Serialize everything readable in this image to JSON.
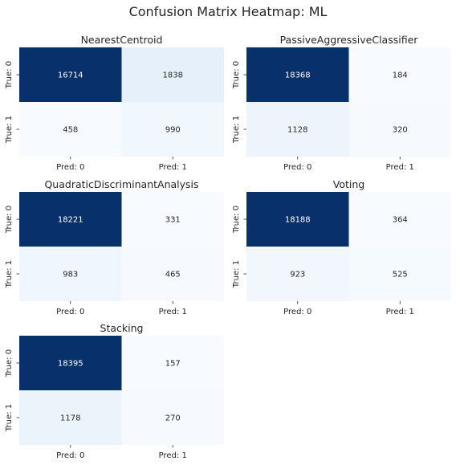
{
  "title": "Confusion Matrix Heatmap: ML",
  "chart_data": [
    {
      "type": "heatmap",
      "title": "NearestCentroid",
      "x_tick_labels": [
        "Pred: 0",
        "Pred: 1"
      ],
      "y_tick_labels": [
        "True: 0",
        "True: 1"
      ],
      "matrix": [
        [
          16714,
          1838
        ],
        [
          458,
          990
        ]
      ],
      "colormap": "Blues",
      "colorbar": false
    },
    {
      "type": "heatmap",
      "title": "PassiveAggressiveClassifier",
      "x_tick_labels": [
        "Pred: 0",
        "Pred: 1"
      ],
      "y_tick_labels": [
        "True: 0",
        "True: 1"
      ],
      "matrix": [
        [
          18368,
          184
        ],
        [
          1128,
          320
        ]
      ],
      "colormap": "Blues",
      "colorbar": false
    },
    {
      "type": "heatmap",
      "title": "QuadraticDiscriminantAnalysis",
      "x_tick_labels": [
        "Pred: 0",
        "Pred: 1"
      ],
      "y_tick_labels": [
        "True: 0",
        "True: 1"
      ],
      "matrix": [
        [
          18221,
          331
        ],
        [
          983,
          465
        ]
      ],
      "colormap": "Blues",
      "colorbar": false
    },
    {
      "type": "heatmap",
      "title": "Voting",
      "x_tick_labels": [
        "Pred: 0",
        "Pred: 1"
      ],
      "y_tick_labels": [
        "True: 0",
        "True: 1"
      ],
      "matrix": [
        [
          18188,
          364
        ],
        [
          923,
          525
        ]
      ],
      "colormap": "Blues",
      "colorbar": false
    },
    {
      "type": "heatmap",
      "title": "Stacking",
      "x_tick_labels": [
        "Pred: 0",
        "Pred: 1"
      ],
      "y_tick_labels": [
        "True: 0",
        "True: 1"
      ],
      "matrix": [
        [
          18395,
          157
        ],
        [
          1178,
          270
        ]
      ],
      "colormap": "Blues",
      "colorbar": false
    }
  ],
  "colors": {
    "cmap_low": "#f7fbff",
    "cmap_high": "#08306b",
    "text_dark": "#262626",
    "text_light": "#ffffff"
  }
}
